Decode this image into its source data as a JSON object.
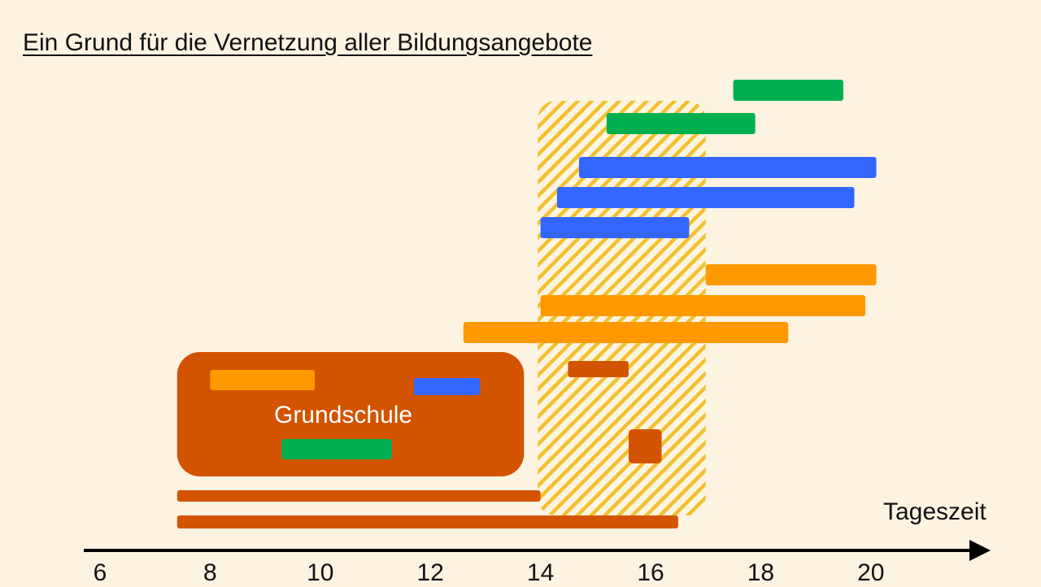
{
  "title": "Ein Grund für die Vernetzung aller Bildungsangebote",
  "x_axis": {
    "title": "Tageszeit",
    "min": 6,
    "max": 22,
    "ticks": [
      "6",
      "8",
      "10",
      "12",
      "14",
      "16",
      "18",
      "20"
    ]
  },
  "school_box": {
    "label": "Grundschule",
    "start": 7.4,
    "end": 13.7
  },
  "highlight_band": {
    "start": 13.95,
    "end": 17.0,
    "pattern": "diagonal-stripes"
  },
  "colors": {
    "background": "#FDF3E1",
    "green": "#00B050",
    "blue": "#3366FF",
    "orange": "#FF9900",
    "rust": "#D35400",
    "hatch": "#F2C12E",
    "axis": "#000000"
  },
  "activities": [
    {
      "color": "green",
      "start": 17.5,
      "end": 19.5
    },
    {
      "color": "green",
      "start": 15.2,
      "end": 17.9
    },
    {
      "color": "blue",
      "start": 14.7,
      "end": 20.1
    },
    {
      "color": "blue",
      "start": 14.3,
      "end": 19.7
    },
    {
      "color": "blue",
      "start": 14.0,
      "end": 16.7
    },
    {
      "color": "orange",
      "start": 17.0,
      "end": 20.1
    },
    {
      "color": "orange",
      "start": 14.0,
      "end": 19.9
    },
    {
      "color": "orange",
      "start": 12.6,
      "end": 18.5
    },
    {
      "color": "rust",
      "start": 14.5,
      "end": 15.6
    },
    {
      "color": "rust",
      "start": 15.6,
      "end": 16.2
    },
    {
      "color": "orange",
      "start": 8.0,
      "end": 9.9
    },
    {
      "color": "blue",
      "start": 11.7,
      "end": 12.9
    },
    {
      "color": "green",
      "start": 9.3,
      "end": 11.3
    },
    {
      "color": "rust",
      "start": 7.4,
      "end": 14.0
    },
    {
      "color": "rust",
      "start": 7.4,
      "end": 16.5
    }
  ]
}
